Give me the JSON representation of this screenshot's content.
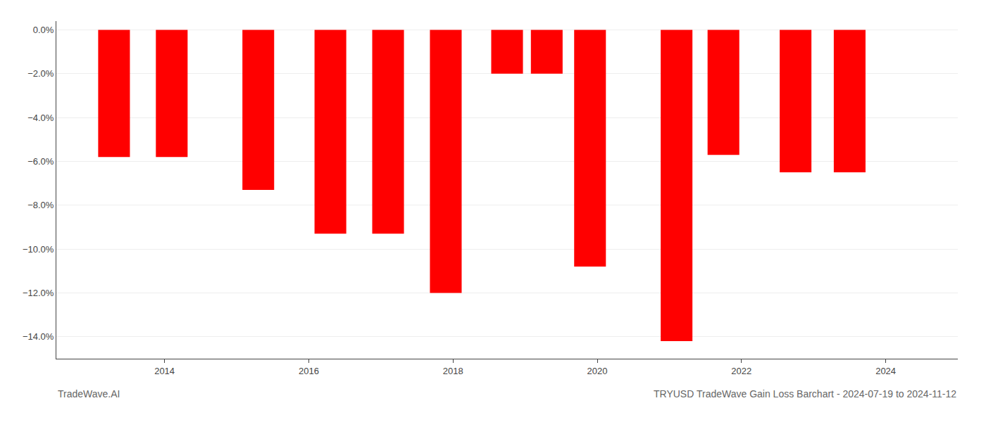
{
  "chart_data": {
    "type": "bar",
    "title": "TRYUSD TradeWave Gain Loss Barchart - 2024-07-19 to 2024-11-12",
    "x": [
      2013.3,
      2014.1,
      2015.3,
      2016.3,
      2017.1,
      2017.9,
      2018.75,
      2019.3,
      2019.9,
      2021.1,
      2021.75,
      2022.75,
      2023.5
    ],
    "values": [
      -5.8,
      -5.8,
      -7.3,
      -9.3,
      -9.3,
      -12.0,
      -2.0,
      -2.0,
      -10.8,
      -14.2,
      -5.7,
      -6.5,
      -6.5
    ],
    "color": "#FF0000",
    "xlim": [
      2012.5,
      2025.0
    ],
    "xticks": [
      2014,
      2016,
      2018,
      2020,
      2022,
      2024
    ],
    "ylim": [
      -15.0,
      0.4
    ],
    "yticks": [
      {
        "value": 0.0,
        "label": "0.0%"
      },
      {
        "value": -2.0,
        "label": "−2.0%"
      },
      {
        "value": -4.0,
        "label": "−4.0%"
      },
      {
        "value": -6.0,
        "label": "−6.0%"
      },
      {
        "value": -8.0,
        "label": "−8.0%"
      },
      {
        "value": -10.0,
        "label": "−10.0%"
      },
      {
        "value": -12.0,
        "label": "−12.0%"
      },
      {
        "value": -14.0,
        "label": "−14.0%"
      }
    ],
    "grid": true,
    "annotations": [
      {
        "text": "TradeWave.AI"
      }
    ]
  }
}
